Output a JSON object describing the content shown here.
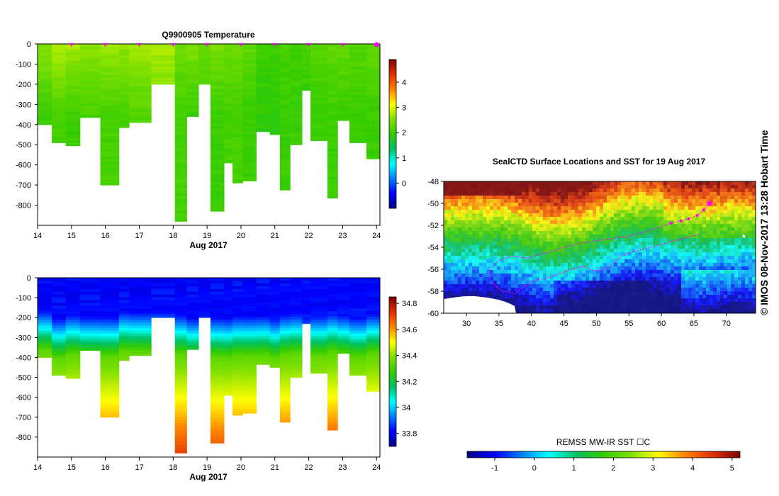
{
  "colors": {
    "cmap": [
      "#00007f",
      "#0000ff",
      "#007fff",
      "#00ffff",
      "#00c060",
      "#33cc00",
      "#7fe000",
      "#ffff00",
      "#ff7f00",
      "#e03000",
      "#7f0000"
    ],
    "land": "#ffffff",
    "track": "#ff00ff",
    "background": "#ffffff"
  },
  "chart_data": [
    {
      "type": "heatmap",
      "name": "temperature-section",
      "title": "Q9900905  Temperature",
      "xlabel": "Aug 2017",
      "ylabel": "",
      "x_ticks": [
        "14",
        "15",
        "16",
        "17",
        "18",
        "19",
        "20",
        "21",
        "22",
        "23",
        "24"
      ],
      "xlim": [
        14,
        24.1
      ],
      "y_ticks": [
        "0",
        "-100",
        "-200",
        "-300",
        "-400",
        "-500",
        "-600",
        "-700",
        "-800"
      ],
      "ylim": [
        -900,
        0
      ],
      "profile_marker_days": [
        15,
        16,
        17,
        18,
        19,
        20,
        21,
        22,
        23,
        24
      ],
      "colorbar": {
        "ticks": [
          "0",
          "1",
          "2",
          "3",
          "4"
        ],
        "range": [
          -1,
          4.9
        ]
      },
      "profiles": [
        {
          "t": 14.0,
          "depth": 400,
          "surface": 2.6,
          "bottom": 2.0
        },
        {
          "t": 14.42,
          "depth": 490,
          "surface": 2.8,
          "bottom": 2.1
        },
        {
          "t": 14.83,
          "depth": 505,
          "surface": 2.7,
          "bottom": 2.0
        },
        {
          "t": 15.25,
          "depth": 365,
          "surface": 2.6,
          "bottom": 2.1
        },
        {
          "t": 15.85,
          "depth": 700,
          "surface": 2.7,
          "bottom": 2.1
        },
        {
          "t": 16.4,
          "depth": 415,
          "surface": 2.6,
          "bottom": 2.1
        },
        {
          "t": 16.7,
          "depth": 390,
          "surface": 2.7,
          "bottom": 2.2
        },
        {
          "t": 17.35,
          "depth": 200,
          "surface": 2.7,
          "bottom": 2.5
        },
        {
          "t": 18.05,
          "depth": 880,
          "surface": 2.4,
          "bottom": 2.1
        },
        {
          "t": 18.4,
          "depth": 360,
          "surface": 2.5,
          "bottom": 2.0
        },
        {
          "t": 18.75,
          "depth": 200,
          "surface": 2.3,
          "bottom": 2.2
        },
        {
          "t": 19.1,
          "depth": 830,
          "surface": 2.5,
          "bottom": 2.0
        },
        {
          "t": 19.5,
          "depth": 590,
          "surface": 2.3,
          "bottom": 2.1
        },
        {
          "t": 19.75,
          "depth": 690,
          "surface": 2.4,
          "bottom": 2.1
        },
        {
          "t": 20.05,
          "depth": 680,
          "surface": 2.3,
          "bottom": 2.0
        },
        {
          "t": 20.45,
          "depth": 435,
          "surface": 2.0,
          "bottom": 1.9
        },
        {
          "t": 20.85,
          "depth": 450,
          "surface": 2.0,
          "bottom": 1.9
        },
        {
          "t": 21.15,
          "depth": 725,
          "surface": 2.1,
          "bottom": 2.0
        },
        {
          "t": 21.45,
          "depth": 500,
          "surface": 2.0,
          "bottom": 2.0
        },
        {
          "t": 21.8,
          "depth": 230,
          "surface": 2.1,
          "bottom": 1.9
        },
        {
          "t": 22.05,
          "depth": 480,
          "surface": 2.2,
          "bottom": 2.0
        },
        {
          "t": 22.55,
          "depth": 765,
          "surface": 2.3,
          "bottom": 2.0
        },
        {
          "t": 22.85,
          "depth": 380,
          "surface": 2.3,
          "bottom": 2.0
        },
        {
          "t": 23.2,
          "depth": 490,
          "surface": 2.2,
          "bottom": 2.0
        },
        {
          "t": 23.7,
          "depth": 570,
          "surface": 2.3,
          "bottom": 2.0
        }
      ]
    },
    {
      "type": "heatmap",
      "name": "salinity-section",
      "title": "",
      "xlabel": "Aug 2017",
      "x_ticks": [
        "14",
        "15",
        "16",
        "17",
        "18",
        "19",
        "20",
        "21",
        "22",
        "23",
        "24"
      ],
      "xlim": [
        14,
        24.1
      ],
      "y_ticks": [
        "0",
        "-100",
        "-200",
        "-300",
        "-400",
        "-500",
        "-600",
        "-700",
        "-800"
      ],
      "ylim": [
        -900,
        0
      ],
      "colorbar": {
        "ticks": [
          "33.8",
          "34",
          "34.2",
          "34.4",
          "34.6",
          "34.8"
        ],
        "range": [
          33.7,
          34.85
        ]
      },
      "surface_salinity": 33.82,
      "halocline_depth": 260
    },
    {
      "type": "heatmap",
      "name": "sst-map",
      "title": "SealCTD Surface Locations and SST for 19 Aug 2017",
      "x_ticks": [
        "30",
        "35",
        "40",
        "45",
        "50",
        "55",
        "60",
        "65",
        "70"
      ],
      "xlim": [
        26.5,
        74.5
      ],
      "y_ticks": [
        "-48",
        "-50",
        "-52",
        "-54",
        "-56",
        "-58",
        "-60"
      ],
      "ylim": [
        -60,
        -48
      ],
      "colorbar": {
        "label": "REMSS MW-IR SST ☐C",
        "ticks": [
          "-1",
          "0",
          "1",
          "2",
          "3",
          "4",
          "5"
        ],
        "range": [
          -1.7,
          5.2
        ]
      },
      "current_position": [
        67.4,
        -50.0
      ],
      "track": [
        [
          67.4,
          -50.0
        ],
        [
          66.5,
          -50.6
        ],
        [
          65.5,
          -51.1
        ],
        [
          64.2,
          -51.4
        ],
        [
          63.0,
          -51.6
        ],
        [
          61.5,
          -51.8
        ],
        [
          59.5,
          -52.2
        ],
        [
          57.5,
          -52.6
        ],
        [
          55.0,
          -53.0
        ],
        [
          52.5,
          -53.2
        ],
        [
          50.0,
          -53.4
        ],
        [
          47.5,
          -53.6
        ],
        [
          45.0,
          -54.0
        ],
        [
          43.0,
          -54.4
        ],
        [
          41.5,
          -54.6
        ],
        [
          39.5,
          -55.0
        ],
        [
          37.0,
          -54.8
        ],
        [
          35.0,
          -55.2
        ],
        [
          33.5,
          -56.0
        ],
        [
          33.8,
          -57.2
        ],
        [
          35.5,
          -58.0
        ],
        [
          37.5,
          -58.2
        ],
        [
          39.0,
          -57.5
        ],
        [
          40.5,
          -57.0
        ],
        [
          42.5,
          -56.8
        ],
        [
          44.0,
          -56.5
        ],
        [
          46.0,
          -56.0
        ],
        [
          48.0,
          -55.7
        ],
        [
          50.0,
          -56.2
        ],
        [
          52.0,
          -55.8
        ],
        [
          53.5,
          -55.0
        ],
        [
          55.0,
          -54.5
        ],
        [
          57.0,
          -54.2
        ],
        [
          59.5,
          -53.8
        ],
        [
          62.0,
          -53.4
        ],
        [
          64.0,
          -53.1
        ],
        [
          66.0,
          -52.8
        ]
      ]
    }
  ],
  "credit": "©  IMOS 08-Nov-2017 13:28 Hobart Time"
}
